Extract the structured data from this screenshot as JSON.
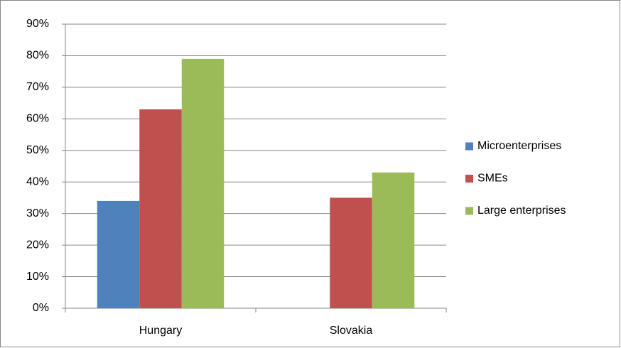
{
  "chart_data": {
    "type": "bar",
    "categories": [
      "Hungary",
      "Slovakia"
    ],
    "series": [
      {
        "name": "Microenterprises",
        "color": "#4f81bd",
        "values": [
          34,
          null
        ]
      },
      {
        "name": "SMEs",
        "color": "#c0504d",
        "values": [
          63,
          35
        ]
      },
      {
        "name": "Large enterprises",
        "color": "#9bbb59",
        "values": [
          79,
          43
        ]
      }
    ],
    "ylim": [
      0,
      90
    ],
    "yticks": [
      {
        "value": 0,
        "label": "0%"
      },
      {
        "value": 10,
        "label": "10%"
      },
      {
        "value": 20,
        "label": "20%"
      },
      {
        "value": 30,
        "label": "30%"
      },
      {
        "value": 40,
        "label": "40%"
      },
      {
        "value": 50,
        "label": "50%"
      },
      {
        "value": 60,
        "label": "60%"
      },
      {
        "value": 70,
        "label": "70%"
      },
      {
        "value": 80,
        "label": "80%"
      },
      {
        "value": 90,
        "label": "90%"
      }
    ],
    "grid": true,
    "legend": "right"
  }
}
